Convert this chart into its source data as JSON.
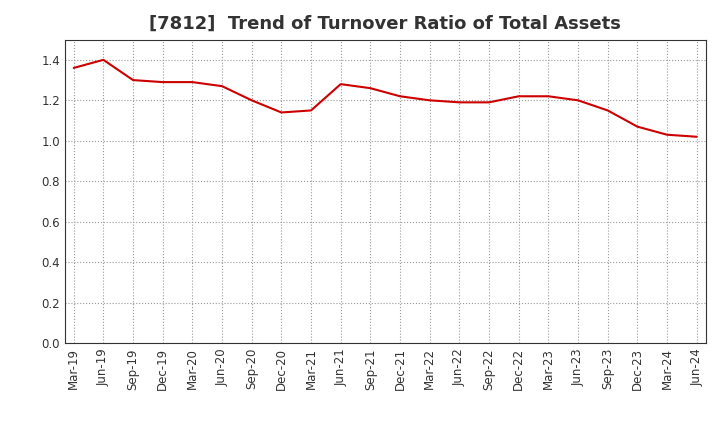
{
  "title": "[7812]  Trend of Turnover Ratio of Total Assets",
  "x_labels": [
    "Mar-19",
    "Jun-19",
    "Sep-19",
    "Dec-19",
    "Mar-20",
    "Jun-20",
    "Sep-20",
    "Dec-20",
    "Mar-21",
    "Jun-21",
    "Sep-21",
    "Dec-21",
    "Mar-22",
    "Jun-22",
    "Sep-22",
    "Dec-22",
    "Mar-23",
    "Jun-23",
    "Sep-23",
    "Dec-23",
    "Mar-24",
    "Jun-24"
  ],
  "y_values": [
    1.36,
    1.4,
    1.3,
    1.29,
    1.29,
    1.27,
    1.2,
    1.14,
    1.15,
    1.28,
    1.26,
    1.22,
    1.2,
    1.19,
    1.19,
    1.22,
    1.22,
    1.2,
    1.15,
    1.07,
    1.03,
    1.02
  ],
  "line_color": "#cc0000",
  "background_color": "#ffffff",
  "plot_bg_color": "#ffffff",
  "grid_color": "#999999",
  "ylim": [
    0.0,
    1.5
  ],
  "yticks": [
    0.0,
    0.2,
    0.4,
    0.6,
    0.8,
    1.0,
    1.2,
    1.4
  ],
  "title_fontsize": 13,
  "tick_fontsize": 8.5
}
